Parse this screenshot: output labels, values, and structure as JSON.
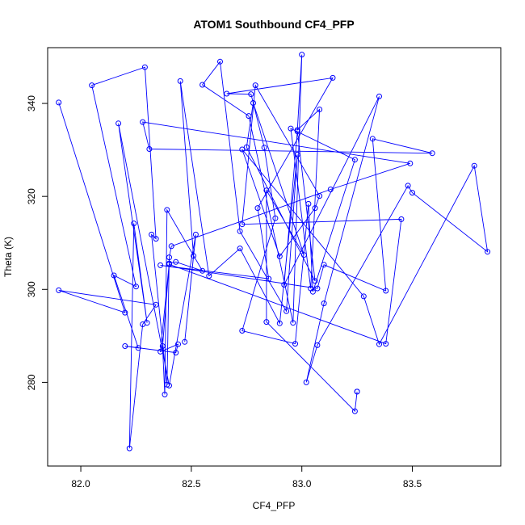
{
  "chart_data": {
    "type": "line",
    "title": "ATOM1 Southbound CF4_PFP",
    "xlabel": "CF4_PFP",
    "ylabel": "Theta (K)",
    "xlim": [
      81.85,
      83.9
    ],
    "ylim": [
      262,
      352
    ],
    "xticks": [
      82.0,
      82.5,
      83.0,
      83.5
    ],
    "xtick_labels": [
      "82.0",
      "82.5",
      "83.0",
      "83.5"
    ],
    "yticks": [
      280,
      300,
      320,
      340
    ],
    "ytick_labels": [
      "280",
      "300",
      "320",
      "340"
    ],
    "grid": false,
    "line_color": "#0000ff",
    "marker": "open-circle",
    "points": [
      [
        81.9,
        340.2
      ],
      [
        82.2,
        295.0
      ],
      [
        81.9,
        299.8
      ],
      [
        82.34,
        296.7
      ],
      [
        82.28,
        292.5
      ],
      [
        82.22,
        265.8
      ],
      [
        82.24,
        314.2
      ],
      [
        82.3,
        292.8
      ],
      [
        82.17,
        335.7
      ],
      [
        82.4,
        279.3
      ],
      [
        82.52,
        311.8
      ],
      [
        82.47,
        288.7
      ],
      [
        82.51,
        307.2
      ],
      [
        82.45,
        344.8
      ],
      [
        82.58,
        302.9
      ],
      [
        82.72,
        308.8
      ],
      [
        82.9,
        292.7
      ],
      [
        82.98,
        329.0
      ],
      [
        82.93,
        295.3
      ],
      [
        82.72,
        312.5
      ],
      [
        82.63,
        349.0
      ],
      [
        82.55,
        344.0
      ],
      [
        82.76,
        337.3
      ],
      [
        82.96,
        292.8
      ],
      [
        83.0,
        350.5
      ],
      [
        82.98,
        334.3
      ],
      [
        83.08,
        338.7
      ],
      [
        83.04,
        300.2
      ],
      [
        82.95,
        334.6
      ],
      [
        83.24,
        327.9
      ],
      [
        83.05,
        299.5
      ],
      [
        83.03,
        318.4
      ],
      [
        82.97,
        288.3
      ],
      [
        82.73,
        291.1
      ],
      [
        82.88,
        315.3
      ],
      [
        82.83,
        330.5
      ],
      [
        82.77,
        342.0
      ],
      [
        82.66,
        342.1
      ],
      [
        83.14,
        345.5
      ],
      [
        82.8,
        317.5
      ],
      [
        82.85,
        302.3
      ],
      [
        82.36,
        305.2
      ],
      [
        83.07,
        300.2
      ],
      [
        83.1,
        305.3
      ],
      [
        83.38,
        299.7
      ],
      [
        83.32,
        332.4
      ],
      [
        83.59,
        329.3
      ],
      [
        82.31,
        330.2
      ],
      [
        82.28,
        336.0
      ],
      [
        83.49,
        327.1
      ],
      [
        83.13,
        321.5
      ],
      [
        82.41,
        309.3
      ],
      [
        82.4,
        306.9
      ],
      [
        82.39,
        279.5
      ],
      [
        82.32,
        311.8
      ],
      [
        82.34,
        310.9
      ],
      [
        82.29,
        347.8
      ],
      [
        82.05,
        343.9
      ],
      [
        82.25,
        300.6
      ],
      [
        82.15,
        303.0
      ],
      [
        82.26,
        287.4
      ],
      [
        82.2,
        287.8
      ],
      [
        82.43,
        286.4
      ],
      [
        82.44,
        288.2
      ],
      [
        82.36,
        286.6
      ],
      [
        82.4,
        305.6
      ],
      [
        82.43,
        305.9
      ],
      [
        82.55,
        304.0
      ],
      [
        82.39,
        317.1
      ],
      [
        82.38,
        277.4
      ],
      [
        82.37,
        287.8
      ],
      [
        82.4,
        305.4
      ],
      [
        83.38,
        288.3
      ],
      [
        83.45,
        315.1
      ],
      [
        82.73,
        314.0
      ],
      [
        82.79,
        343.9
      ],
      [
        83.08,
        320.1
      ],
      [
        83.06,
        317.5
      ],
      [
        82.9,
        307.1
      ],
      [
        82.73,
        330.1
      ],
      [
        83.28,
        298.5
      ],
      [
        83.35,
        288.2
      ],
      [
        83.78,
        326.6
      ],
      [
        83.84,
        308.1
      ],
      [
        83.5,
        320.8
      ],
      [
        83.48,
        322.3
      ],
      [
        83.07,
        288.0
      ],
      [
        83.02,
        280.0
      ],
      [
        83.1,
        297.0
      ],
      [
        83.35,
        341.5
      ],
      [
        82.92,
        301.0
      ],
      [
        82.98,
        334.0
      ],
      [
        83.06,
        301.8
      ],
      [
        82.75,
        330.6
      ],
      [
        82.78,
        340.1
      ],
      [
        83.01,
        307.4
      ],
      [
        82.84,
        321.3
      ],
      [
        82.84,
        293.0
      ],
      [
        83.24,
        273.8
      ],
      [
        83.25,
        278.0
      ],
      [
        83.25,
        278.0
      ]
    ]
  }
}
